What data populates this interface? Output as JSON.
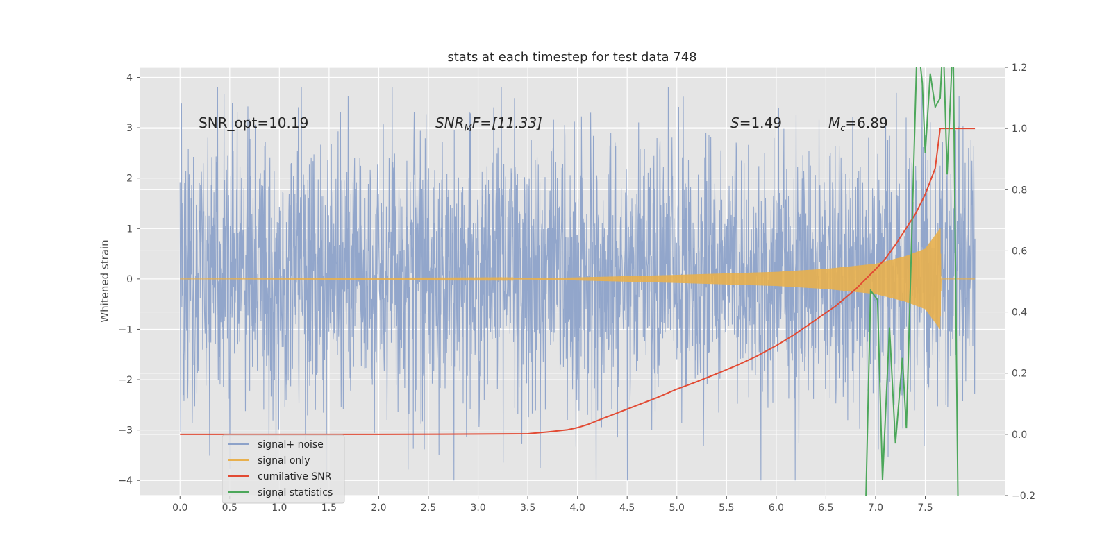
{
  "chart_data": {
    "type": "line",
    "title": "stats at each timestep for test data 748",
    "ylabel": "Whitened strain",
    "xlabel": "",
    "xlim": [
      -0.4,
      8.3
    ],
    "ylim_left": [
      -4.3,
      4.2
    ],
    "ylim_right": [
      -0.2,
      1.2
    ],
    "x_ticks": [
      "0.0",
      "0.5",
      "1.0",
      "1.5",
      "2.0",
      "2.5",
      "3.0",
      "3.5",
      "4.0",
      "4.5",
      "5.0",
      "5.5",
      "6.0",
      "6.5",
      "7.0",
      "7.5"
    ],
    "y_ticks_left": [
      "4",
      "3",
      "2",
      "1",
      "0",
      "−1",
      "−2",
      "−3",
      "−4"
    ],
    "y_ticks_right": [
      "1.2",
      "1.0",
      "0.8",
      "0.6",
      "0.4",
      "0.2",
      "0.0",
      "−0.2"
    ],
    "grid": true,
    "legend_placement": "lower-left",
    "annotations": {
      "snr_opt": "SNR_opt=10.19",
      "snr_mf_sym": "SNR",
      "snr_mf_sub": "M",
      "snr_mf_rest": "F=[11.33]",
      "s_sym": "S",
      "s_rest": "=1.49",
      "mc_sym": "M",
      "mc_sub": "c",
      "mc_rest": "=6.89"
    },
    "series": [
      {
        "name": "signal+ noise",
        "color": "#8da2c9",
        "axis": "left",
        "kind": "noise",
        "x_range": [
          0.0,
          8.0
        ],
        "typical_range": [
          -2.0,
          2.3
        ],
        "extreme_range": [
          -4.0,
          3.8
        ]
      },
      {
        "name": "signal only",
        "color": "#e8b04e",
        "axis": "left",
        "kind": "chirp",
        "x_range": [
          0.0,
          8.0
        ],
        "merger_time": 7.65,
        "peak_amplitude": 1.0,
        "envelope": [
          [
            0.0,
            0.0
          ],
          [
            3.5,
            0.01
          ],
          [
            4.0,
            0.03
          ],
          [
            5.0,
            0.08
          ],
          [
            6.0,
            0.14
          ],
          [
            6.5,
            0.2
          ],
          [
            7.0,
            0.3
          ],
          [
            7.3,
            0.45
          ],
          [
            7.5,
            0.6
          ],
          [
            7.65,
            1.0
          ],
          [
            7.66,
            0.0
          ],
          [
            8.0,
            0.0
          ]
        ]
      },
      {
        "name": "cumilative SNR",
        "color": "#e24a33",
        "axis": "right",
        "x": [
          0.0,
          1.0,
          2.0,
          3.0,
          3.5,
          3.7,
          3.9,
          4.0,
          4.1,
          4.2,
          4.4,
          4.6,
          4.8,
          5.0,
          5.2,
          5.4,
          5.6,
          5.8,
          6.0,
          6.2,
          6.4,
          6.6,
          6.8,
          7.0,
          7.1,
          7.2,
          7.3,
          7.4,
          7.5,
          7.6,
          7.65,
          7.8,
          8.0
        ],
        "y": [
          0.0,
          0.0,
          0.0,
          0.001,
          0.002,
          0.008,
          0.015,
          0.022,
          0.032,
          0.045,
          0.07,
          0.095,
          0.12,
          0.148,
          0.172,
          0.198,
          0.225,
          0.255,
          0.29,
          0.33,
          0.375,
          0.42,
          0.475,
          0.54,
          0.575,
          0.62,
          0.67,
          0.72,
          0.785,
          0.87,
          1.0,
          1.0,
          1.0
        ]
      },
      {
        "name": "signal statistics",
        "color": "#4ca75a",
        "axis": "right",
        "x": [
          6.9,
          6.95,
          7.02,
          7.07,
          7.14,
          7.2,
          7.27,
          7.31,
          7.36,
          7.42,
          7.47,
          7.5,
          7.55,
          7.6,
          7.65,
          7.68,
          7.72,
          7.78,
          7.83
        ],
        "y": [
          -0.25,
          0.47,
          0.44,
          -0.15,
          0.35,
          -0.03,
          0.25,
          0.02,
          0.6,
          1.3,
          1.15,
          0.92,
          1.18,
          1.07,
          1.1,
          1.3,
          0.85,
          1.3,
          -0.25
        ]
      }
    ]
  }
}
